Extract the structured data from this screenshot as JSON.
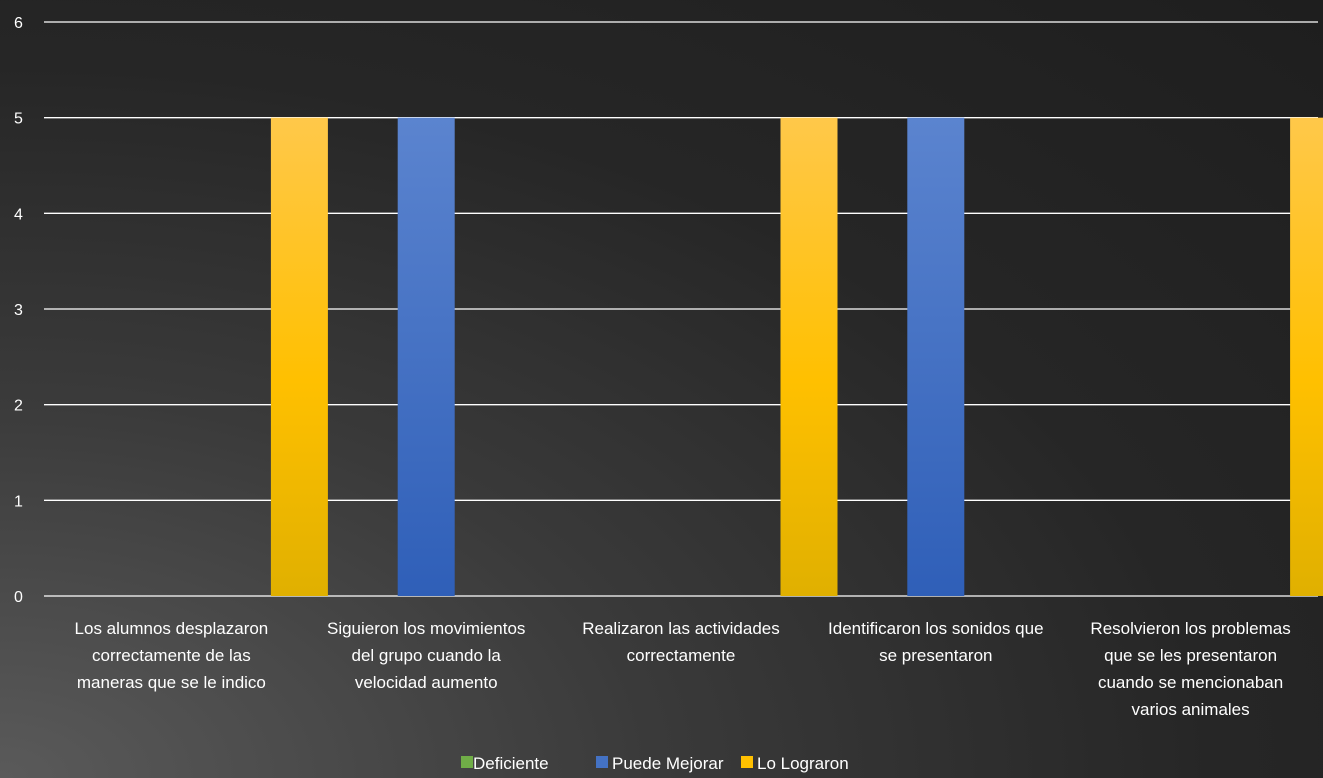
{
  "chart_data": {
    "type": "bar",
    "categories": [
      [
        "Los alumnos desplazaron",
        "correctamente de las",
        "maneras que se le indico"
      ],
      [
        "Siguieron los movimientos",
        "del grupo cuando la",
        "velocidad aumento"
      ],
      [
        "Realizaron las actividades",
        "correctamente"
      ],
      [
        "Identificaron los sonidos que",
        "se presentaron"
      ],
      [
        "Resolvieron los problemas",
        "que se les presentaron",
        "cuando se mencionaban",
        "varios animales"
      ]
    ],
    "series": [
      {
        "name": "Deficiente",
        "color": "#70ad47",
        "values": [
          0,
          0,
          0,
          0,
          0
        ]
      },
      {
        "name": "Puede Mejorar",
        "color": "#4472c4",
        "values": [
          0,
          5,
          0,
          5,
          0
        ]
      },
      {
        "name": "Lo Lograron",
        "color": "#ffc000",
        "values": [
          5,
          0,
          5,
          0,
          5
        ]
      }
    ],
    "ylim": [
      0,
      6
    ],
    "yticks": [
      "0",
      "1",
      "2",
      "3",
      "4",
      "5",
      "6"
    ],
    "grid": true,
    "legend": "bottom"
  }
}
